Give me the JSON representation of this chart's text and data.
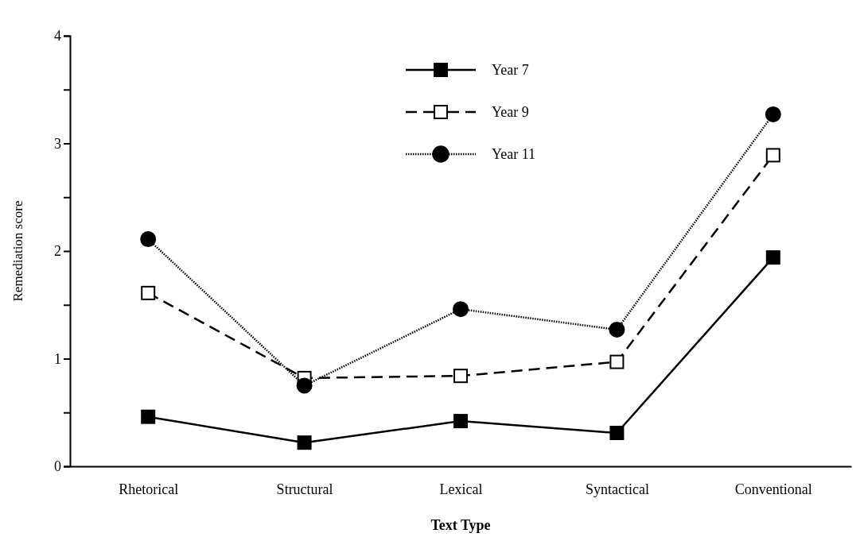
{
  "chart_data": {
    "type": "line",
    "xlabel": "Text Type",
    "ylabel": "Remediation score",
    "categories": [
      "Rhetorical",
      "Structural",
      "Lexical",
      "Syntactical",
      "Conventional"
    ],
    "ylim": [
      0,
      4
    ],
    "yticks": [
      0,
      {
        "value": 0.5,
        "label": null
      },
      1,
      {
        "value": 1.5,
        "label": null
      },
      2,
      {
        "value": 2.5,
        "label": null
      },
      3,
      {
        "value": 3.5,
        "label": null
      },
      4
    ],
    "legend": "top",
    "grid": false,
    "series": [
      {
        "name": "Year 7",
        "color": "#000000",
        "marker": "square",
        "line_style": "solid",
        "values": [
          0.46,
          0.22,
          0.42,
          0.31,
          1.94
        ]
      },
      {
        "name": "Year 9",
        "color": "#000000",
        "marker": "square",
        "line_style": "dashed",
        "values": [
          1.61,
          0.82,
          0.84,
          0.97,
          2.89
        ]
      },
      {
        "name": "Year 11",
        "color": "#000000",
        "marker": "circle",
        "line_style": "dotted",
        "values": [
          2.11,
          0.75,
          1.46,
          1.27,
          3.27
        ]
      }
    ]
  }
}
